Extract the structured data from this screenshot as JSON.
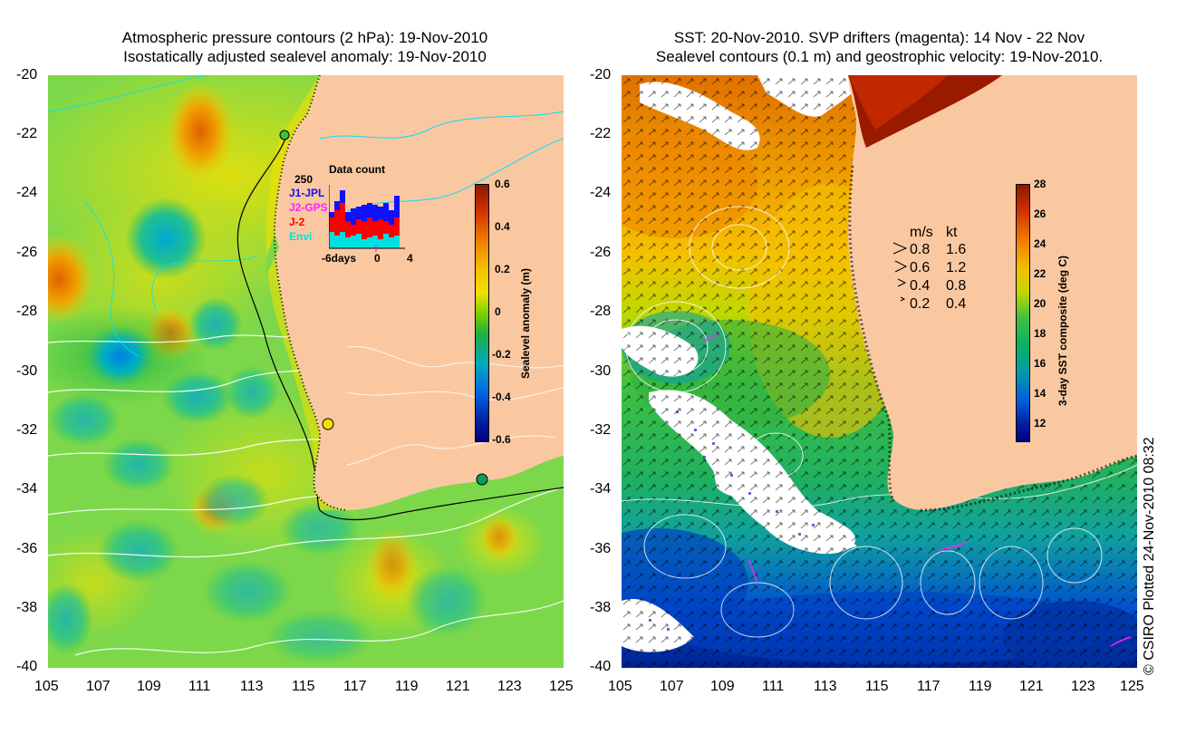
{
  "left_panel": {
    "title_line1": "Atmospheric pressure contours (2 hPa): 19-Nov-2010",
    "title_line2": "Isostatically adjusted sealevel anomaly: 19-Nov-2010",
    "colorbar": {
      "title": "Sealevel anomaly (m)",
      "tick_labels": [
        "0.6",
        "0.4",
        "0.2",
        "0",
        "-0.2",
        "-0.4",
        "-0.6"
      ],
      "colors": [
        "#8b1a00",
        "#e04a00",
        "#f5a000",
        "#f0e000",
        "#30c000",
        "#00a8c0",
        "#0040e0",
        "#000080"
      ]
    },
    "data_count": {
      "title": "Data count",
      "max_label": "250",
      "missions": [
        {
          "name": "J1-JPL",
          "color": "#1010ff"
        },
        {
          "name": "J2-GPS",
          "color": "#ff20ff"
        },
        {
          "name": "J-2",
          "color": "#ff0000"
        },
        {
          "name": "Envi",
          "color": "#00e0e0"
        }
      ],
      "x_labels": [
        "-6days",
        "0",
        "4"
      ]
    }
  },
  "right_panel": {
    "title_line1": "SST: 20-Nov-2010. SVP drifters (magenta): 14 Nov - 22 Nov",
    "title_line2": "Sealevel contours (0.1 m) and geostrophic velocity: 19-Nov-2010.",
    "colorbar": {
      "title": "3-day SST composite (deg C)",
      "tick_labels": [
        "28",
        "26",
        "24",
        "22",
        "20",
        "18",
        "16",
        "14",
        "12"
      ],
      "colors": [
        "#8b1a00",
        "#d04000",
        "#f08000",
        "#f5c000",
        "#a0e000",
        "#20c000",
        "#00a0a0",
        "#0050e0",
        "#000080"
      ]
    },
    "speed_legend": {
      "header_ms": "m/s",
      "header_kt": "kt",
      "rows": [
        {
          "ms": "0.8",
          "kt": "1.6"
        },
        {
          "ms": "0.6",
          "kt": "1.2"
        },
        {
          "ms": "0.4",
          "kt": "0.8"
        },
        {
          "ms": "0.2",
          "kt": "0.4"
        }
      ]
    }
  },
  "axes": {
    "y_labels": [
      "-20",
      "-22",
      "-24",
      "-26",
      "-28",
      "-30",
      "-32",
      "-34",
      "-36",
      "-38",
      "-40"
    ],
    "x_labels": [
      "105",
      "107",
      "109",
      "111",
      "113",
      "115",
      "117",
      "119",
      "121",
      "123",
      "125"
    ]
  },
  "colors": {
    "land": "#fac8a0",
    "ocean_bg_left": "#7cd84a",
    "ocean_bg_right": "#30b830"
  },
  "credit": "© CSIRO Plotted 24-Nov-2010 08:32"
}
